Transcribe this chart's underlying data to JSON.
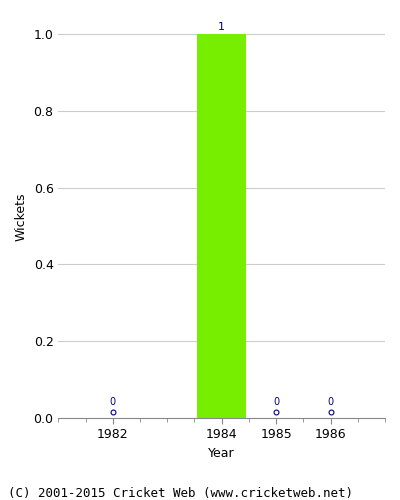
{
  "years": [
    1982,
    1984,
    1985,
    1986
  ],
  "values": [
    0,
    1,
    0,
    0
  ],
  "bar_year": 1984,
  "bar_value": 1,
  "bar_color": "#77ee00",
  "xlabel": "Year",
  "ylabel": "Wickets",
  "ylim": [
    0.0,
    1.05
  ],
  "yticks": [
    0.0,
    0.2,
    0.4,
    0.6,
    0.8,
    1.0
  ],
  "footer": "(C) 2001-2015 Cricket Web (www.cricketweb.net)",
  "label_color": "#000080",
  "label_fontsize": 8,
  "footer_fontsize": 9,
  "axis_label_fontsize": 9,
  "tick_fontsize": 9,
  "bar_width": 0.9,
  "zero_marker_color": "#000080",
  "value_label_color": "#000080",
  "grid_color": "#cccccc",
  "background_color": "#ffffff",
  "xlim": [
    1981.0,
    1987.0
  ],
  "xtick_labels": [
    1982,
    1984,
    1985,
    1986
  ],
  "zero_years": [
    1982,
    1985,
    1986
  ]
}
